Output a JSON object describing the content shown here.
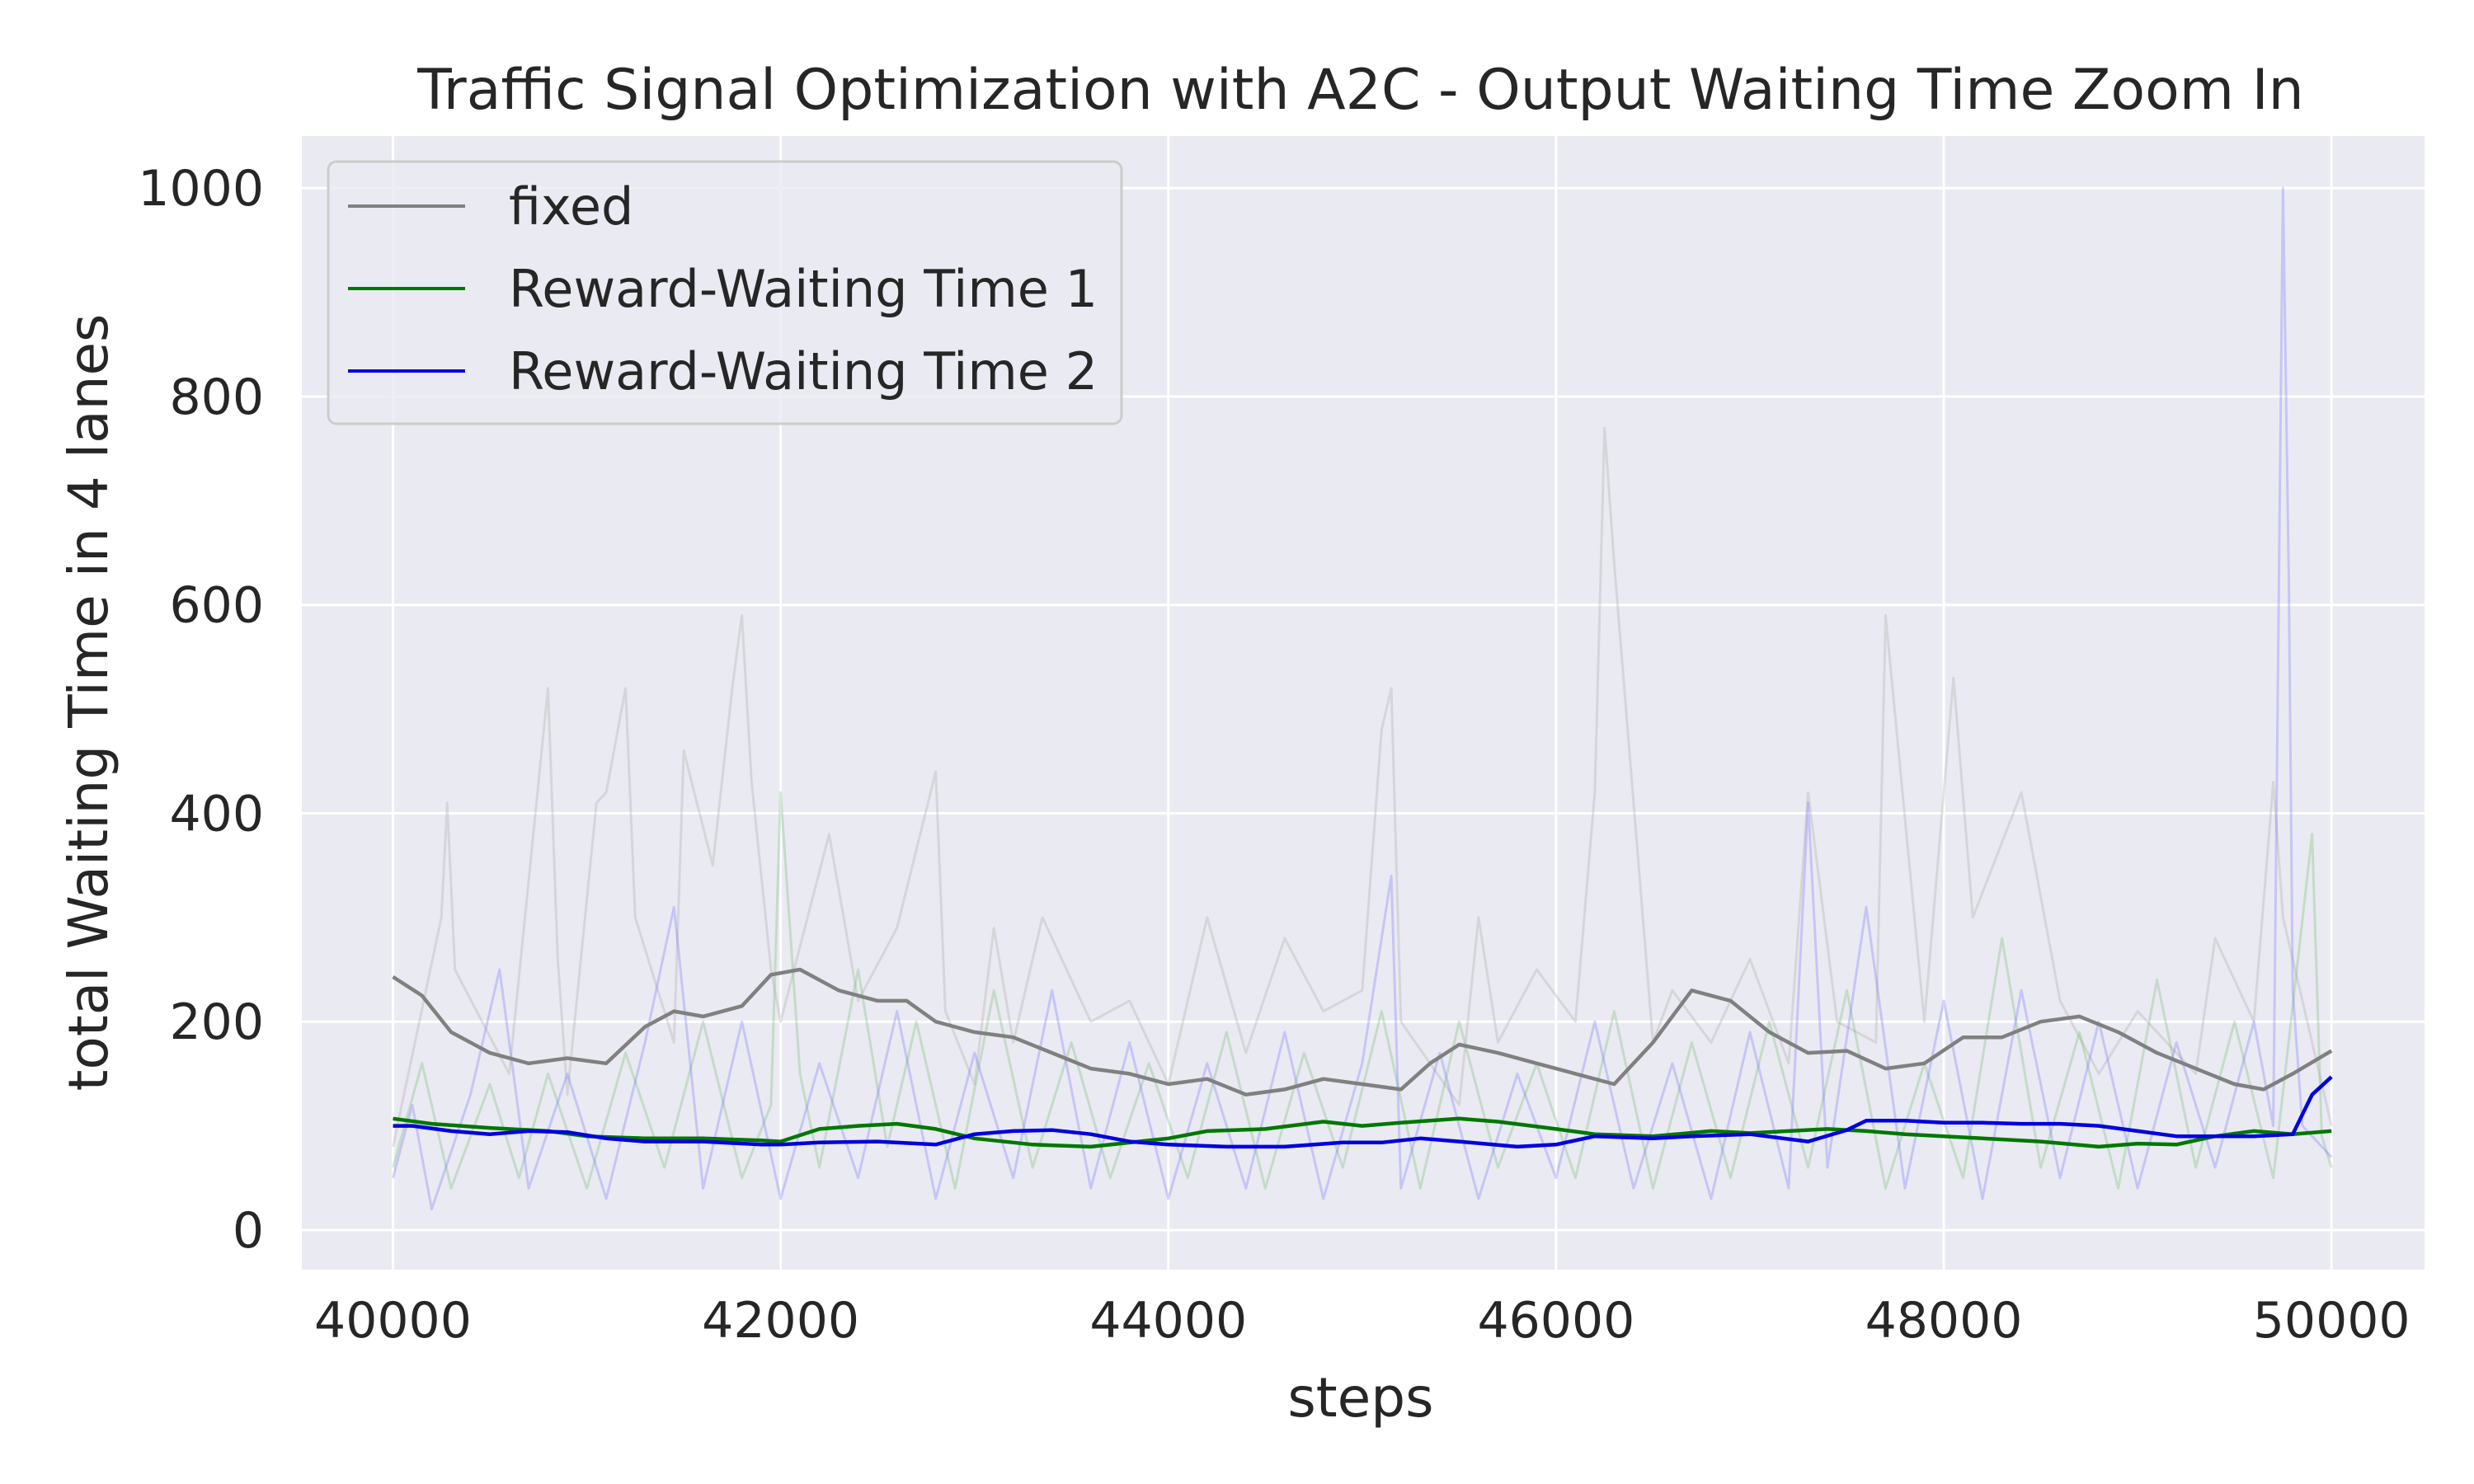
{
  "chart_data": {
    "type": "line",
    "title": "Traffic Signal Optimization with A2C - Output Waiting Time Zoom In",
    "xlabel": "steps",
    "ylabel": "total Waiting Time in 4 lanes",
    "xlim": [
      39530,
      50480
    ],
    "ylim": [
      -38,
      1050
    ],
    "xticks": [
      40000,
      42000,
      44000,
      46000,
      48000,
      50000
    ],
    "yticks": [
      0,
      200,
      400,
      600,
      800,
      1000
    ],
    "grid": true,
    "legend_position": "top-left",
    "colors": {
      "background": "#eaeaf2",
      "grid": "#ffffff"
    },
    "series": [
      {
        "name": "fixed",
        "color": "#808080",
        "x": [
          40000,
          40150,
          40300,
          40500,
          40700,
          40900,
          41100,
          41300,
          41450,
          41600,
          41800,
          41950,
          42100,
          42300,
          42500,
          42650,
          42800,
          43000,
          43200,
          43400,
          43600,
          43800,
          44000,
          44200,
          44400,
          44600,
          44800,
          45000,
          45200,
          45350,
          45500,
          45700,
          45900,
          46100,
          46300,
          46500,
          46700,
          46900,
          47100,
          47300,
          47500,
          47700,
          47900,
          48100,
          48300,
          48500,
          48700,
          48900,
          49100,
          49300,
          49500,
          49650,
          49800,
          50000
        ],
        "y": [
          243,
          225,
          190,
          170,
          160,
          165,
          160,
          195,
          210,
          205,
          215,
          245,
          250,
          230,
          220,
          220,
          200,
          190,
          185,
          170,
          155,
          150,
          140,
          145,
          130,
          135,
          145,
          140,
          135,
          160,
          178,
          170,
          160,
          150,
          140,
          180,
          230,
          220,
          190,
          170,
          172,
          155,
          160,
          185,
          185,
          200,
          205,
          190,
          170,
          155,
          140,
          135,
          150,
          172
        ]
      },
      {
        "name": "Reward-Waiting Time 1",
        "color": "#007800",
        "x": [
          40000,
          40200,
          40500,
          40800,
          41000,
          41300,
          41600,
          41900,
          42000,
          42200,
          42400,
          42600,
          42800,
          43000,
          43300,
          43600,
          44000,
          44200,
          44500,
          44800,
          45000,
          45200,
          45500,
          45700,
          46000,
          46200,
          46500,
          46800,
          47000,
          47200,
          47400,
          47600,
          47800,
          48000,
          48200,
          48500,
          48800,
          49000,
          49200,
          49400,
          49600,
          49800,
          50000
        ],
        "y": [
          107,
          102,
          98,
          95,
          90,
          88,
          88,
          86,
          85,
          97,
          100,
          102,
          97,
          88,
          82,
          80,
          88,
          95,
          97,
          104,
          100,
          103,
          107,
          104,
          97,
          92,
          90,
          95,
          93,
          95,
          97,
          95,
          92,
          90,
          88,
          85,
          80,
          83,
          82,
          90,
          95,
          92,
          95
        ]
      },
      {
        "name": "Reward-Waiting Time 2",
        "color": "#0000e0",
        "x": [
          40000,
          40100,
          40300,
          40500,
          40700,
          40900,
          41100,
          41300,
          41600,
          41900,
          42000,
          42200,
          42500,
          42800,
          43000,
          43200,
          43400,
          43600,
          43800,
          44000,
          44300,
          44600,
          44900,
          45100,
          45300,
          45500,
          45800,
          46000,
          46200,
          46500,
          46700,
          47000,
          47300,
          47500,
          47600,
          47800,
          48000,
          48200,
          48400,
          48600,
          48800,
          49000,
          49200,
          49400,
          49600,
          49800,
          49900,
          50000
        ],
        "y": [
          100,
          100,
          95,
          92,
          95,
          94,
          88,
          85,
          85,
          82,
          82,
          84,
          85,
          82,
          92,
          95,
          96,
          92,
          85,
          82,
          80,
          80,
          84,
          84,
          88,
          85,
          80,
          82,
          90,
          88,
          90,
          92,
          85,
          96,
          105,
          105,
          103,
          103,
          102,
          102,
          100,
          95,
          90,
          90,
          90,
          92,
          130,
          147
        ]
      },
      {
        "name": "",
        "color": "#b0b0b0",
        "x": [
          40000,
          40250,
          40280,
          40320,
          40600,
          40800,
          40850,
          40900,
          41050,
          41100,
          41200,
          41250,
          41450,
          41500,
          41650,
          41750,
          41800,
          41850,
          41950,
          42000,
          42250,
          42400,
          42600,
          42800,
          42850,
          43000,
          43100,
          43200,
          43350,
          43600,
          43800,
          44000,
          44200,
          44400,
          44600,
          44800,
          45000,
          45100,
          45150,
          45200,
          45350,
          45500,
          45600,
          45700,
          45900,
          46100,
          46200,
          46250,
          46300,
          46500,
          46600,
          46800,
          47000,
          47200,
          47300,
          47450,
          47650,
          47700,
          47900,
          48050,
          48150,
          48400,
          48600,
          48800,
          49000,
          49300,
          49400,
          49600,
          49700,
          49750,
          50000
        ],
        "y": [
          80,
          300,
          410,
          250,
          150,
          520,
          260,
          130,
          410,
          420,
          520,
          300,
          180,
          460,
          350,
          520,
          590,
          430,
          250,
          200,
          380,
          220,
          290,
          440,
          210,
          140,
          290,
          180,
          300,
          200,
          220,
          140,
          300,
          170,
          280,
          210,
          230,
          480,
          520,
          200,
          160,
          120,
          300,
          180,
          250,
          200,
          420,
          770,
          640,
          180,
          230,
          180,
          260,
          160,
          420,
          200,
          180,
          590,
          200,
          530,
          300,
          420,
          220,
          150,
          210,
          150,
          280,
          200,
          430,
          300,
          100
        ]
      },
      {
        "name": "",
        "color": "#7fbf7f",
        "x": [
          40000,
          40150,
          40300,
          40500,
          40650,
          40800,
          41000,
          41200,
          41400,
          41600,
          41800,
          41950,
          42000,
          42100,
          42200,
          42400,
          42550,
          42700,
          42900,
          43100,
          43300,
          43500,
          43700,
          43900,
          44100,
          44300,
          44500,
          44700,
          44900,
          45100,
          45300,
          45500,
          45700,
          45900,
          46100,
          46300,
          46500,
          46700,
          46900,
          47100,
          47300,
          47500,
          47700,
          47900,
          48100,
          48300,
          48500,
          48700,
          48900,
          49100,
          49300,
          49500,
          49700,
          49900,
          49950,
          50000
        ],
        "y": [
          60,
          160,
          40,
          140,
          50,
          150,
          40,
          170,
          60,
          200,
          50,
          120,
          420,
          150,
          60,
          250,
          80,
          200,
          40,
          230,
          60,
          180,
          50,
          160,
          50,
          190,
          40,
          170,
          60,
          210,
          40,
          200,
          60,
          160,
          50,
          210,
          40,
          180,
          50,
          200,
          60,
          230,
          40,
          160,
          50,
          280,
          60,
          190,
          40,
          240,
          60,
          200,
          50,
          380,
          90,
          60
        ]
      },
      {
        "name": "",
        "color": "#8080ff",
        "x": [
          40000,
          40100,
          40200,
          40400,
          40550,
          40700,
          40900,
          41100,
          41300,
          41450,
          41600,
          41800,
          42000,
          42200,
          42400,
          42600,
          42800,
          43000,
          43200,
          43400,
          43600,
          43800,
          44000,
          44200,
          44400,
          44600,
          44800,
          45000,
          45150,
          45200,
          45400,
          45600,
          45800,
          46000,
          46200,
          46400,
          46600,
          46800,
          47000,
          47200,
          47300,
          47400,
          47600,
          47800,
          48000,
          48200,
          48400,
          48600,
          48800,
          49000,
          49200,
          49400,
          49600,
          49700,
          49750,
          49780,
          49800,
          49850,
          50000
        ],
        "y": [
          50,
          120,
          20,
          130,
          250,
          40,
          150,
          30,
          180,
          310,
          40,
          200,
          30,
          160,
          50,
          210,
          30,
          170,
          50,
          230,
          40,
          180,
          30,
          160,
          40,
          190,
          30,
          160,
          340,
          40,
          170,
          30,
          150,
          50,
          200,
          40,
          160,
          30,
          190,
          40,
          410,
          60,
          310,
          40,
          220,
          30,
          230,
          50,
          200,
          40,
          180,
          60,
          200,
          100,
          1000,
          620,
          230,
          100,
          70
        ]
      }
    ]
  }
}
